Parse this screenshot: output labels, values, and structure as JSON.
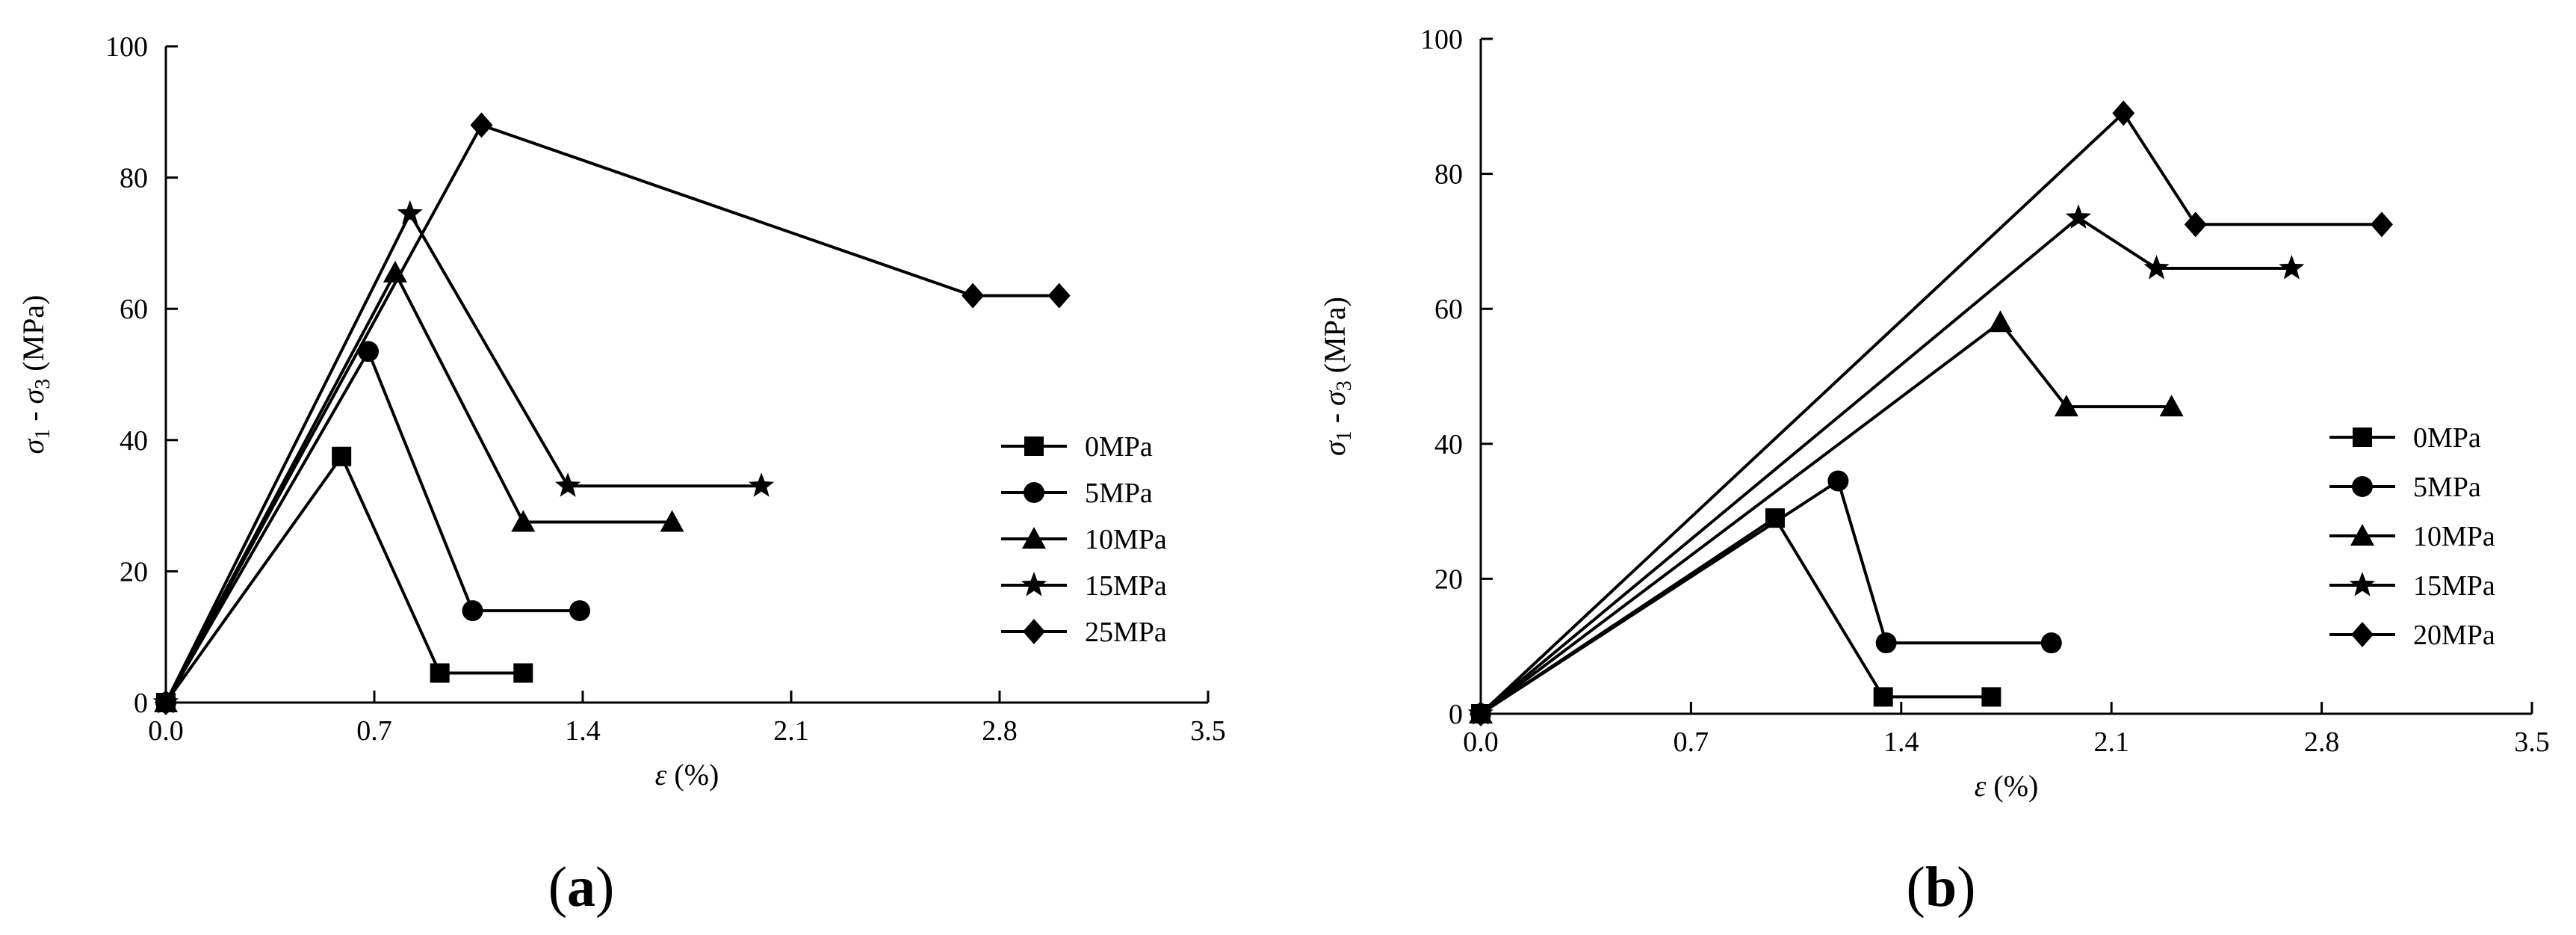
{
  "chart_data": [
    {
      "type": "line",
      "panel_label_open": "(",
      "panel_label_letter": "a",
      "panel_label_close": ")",
      "xlabel_symbol": "ε",
      "xlabel_unit": "(%)",
      "ylabel": {
        "s1": "σ",
        "sub1": "1",
        "mid": " - ",
        "s3": "σ",
        "sub3": "3",
        "unit": " (MPa)"
      },
      "xlim": [
        0,
        3.5
      ],
      "ylim": [
        0,
        100
      ],
      "xticks": [
        "0.0",
        "0.7",
        "1.4",
        "2.1",
        "2.8",
        "3.5"
      ],
      "xtick_values": [
        0,
        0.7,
        1.4,
        2.1,
        2.8,
        3.5
      ],
      "yticks": [
        "0",
        "20",
        "40",
        "60",
        "80",
        "100"
      ],
      "ytick_values": [
        0,
        20,
        40,
        60,
        80,
        100
      ],
      "legend_position": "right",
      "series": [
        {
          "name": "0MPa",
          "marker": "square",
          "x": [
            0,
            0.59,
            0.92,
            1.2
          ],
          "y": [
            0,
            37.5,
            4.5,
            4.5
          ]
        },
        {
          "name": "5MPa",
          "marker": "circle",
          "x": [
            0,
            0.68,
            1.03,
            1.39
          ],
          "y": [
            0,
            53.5,
            14,
            14
          ]
        },
        {
          "name": "10MPa",
          "marker": "triangle",
          "x": [
            0,
            0.77,
            1.2,
            1.7
          ],
          "y": [
            0,
            65.5,
            27.5,
            27.5
          ]
        },
        {
          "name": "15MPa",
          "marker": "star",
          "x": [
            0,
            0.82,
            1.35,
            2.0
          ],
          "y": [
            0,
            74.5,
            33,
            33
          ]
        },
        {
          "name": "25MPa",
          "marker": "diamond",
          "x": [
            0,
            1.06,
            2.71,
            3.0
          ],
          "y": [
            0,
            88,
            62,
            62
          ]
        }
      ]
    },
    {
      "type": "line",
      "panel_label_open": "(",
      "panel_label_letter": "b",
      "panel_label_close": ")",
      "xlabel_symbol": "ε",
      "xlabel_unit": "(%)",
      "ylabel": {
        "s1": "σ",
        "sub1": "1",
        "mid": " - ",
        "s3": "σ",
        "sub3": "3",
        "unit": " (MPa)"
      },
      "xlim": [
        0,
        3.5
      ],
      "ylim": [
        0,
        100
      ],
      "xticks": [
        "0.0",
        "0.7",
        "1.4",
        "2.1",
        "2.8",
        "3.5"
      ],
      "xtick_values": [
        0,
        0.7,
        1.4,
        2.1,
        2.8,
        3.5
      ],
      "yticks": [
        "0",
        "20",
        "40",
        "60",
        "80",
        "100"
      ],
      "ytick_values": [
        0,
        20,
        40,
        60,
        80,
        100
      ],
      "legend_position": "right",
      "series": [
        {
          "name": "0MPa",
          "marker": "square",
          "x": [
            0,
            0.98,
            1.34,
            1.7
          ],
          "y": [
            0,
            29,
            2.5,
            2.5
          ]
        },
        {
          "name": "5MPa",
          "marker": "circle",
          "x": [
            0,
            1.19,
            1.35,
            1.9
          ],
          "y": [
            0,
            34.5,
            10.5,
            10.5
          ]
        },
        {
          "name": "10MPa",
          "marker": "triangle",
          "x": [
            0,
            1.73,
            1.95,
            2.3
          ],
          "y": [
            0,
            58,
            45.5,
            45.5
          ]
        },
        {
          "name": "15MPa",
          "marker": "star",
          "x": [
            0,
            1.99,
            2.25,
            2.7
          ],
          "y": [
            0,
            73.5,
            66,
            66
          ]
        },
        {
          "name": "20MPa",
          "marker": "diamond",
          "x": [
            0,
            2.14,
            2.38,
            3.0
          ],
          "y": [
            0,
            89,
            72.5,
            72.5
          ]
        }
      ]
    }
  ]
}
